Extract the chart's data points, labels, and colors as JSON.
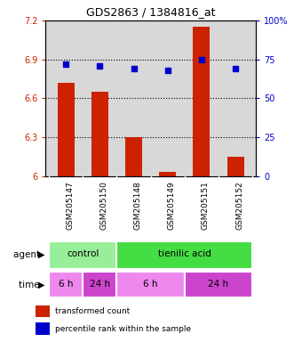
{
  "title": "GDS2863 / 1384816_at",
  "samples": [
    "GSM205147",
    "GSM205150",
    "GSM205148",
    "GSM205149",
    "GSM205151",
    "GSM205152"
  ],
  "bar_values": [
    6.72,
    6.65,
    6.3,
    6.03,
    7.15,
    6.15
  ],
  "percentile_values": [
    72,
    71,
    69,
    68,
    75,
    69
  ],
  "bar_color": "#cc2200",
  "dot_color": "#0000cc",
  "ylim_left": [
    6.0,
    7.2
  ],
  "ylim_right": [
    0,
    100
  ],
  "yticks_left": [
    6.0,
    6.3,
    6.6,
    6.9,
    7.2
  ],
  "yticks_right": [
    0,
    25,
    50,
    75,
    100
  ],
  "ytick_labels_left": [
    "6",
    "6.3",
    "6.6",
    "6.9",
    "7.2"
  ],
  "ytick_labels_right": [
    "0",
    "25",
    "50",
    "75",
    "100%"
  ],
  "hgrid_vals": [
    6.3,
    6.6,
    6.9
  ],
  "legend_bar_label": "transformed count",
  "legend_dot_label": "percentile rank within the sample",
  "agent_row_label": "agent",
  "time_row_label": "time",
  "bar_width": 0.5,
  "plot_bg_color": "#d8d8d8",
  "agent_control_color": "#99ee99",
  "agent_tienilic_color": "#44dd44",
  "time_6h_color": "#ee88ee",
  "time_24h_color": "#cc44cc"
}
